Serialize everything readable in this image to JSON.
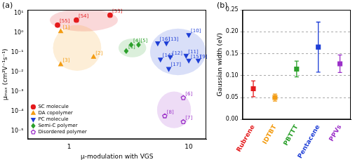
{
  "chart_data": [
    {
      "panel": "(a)",
      "type": "scatter",
      "x_label": "μ-modulation with VGS",
      "y_label": "μₘₐₓ (cm²V⁻¹s⁻¹)",
      "log": true,
      "grid": false,
      "legend": "lower left",
      "xlim": [
        0.45,
        14
      ],
      "xticks": [
        1,
        10
      ],
      "ylim": [
        4e-06,
        15
      ],
      "yticks": [
        {
          "value": 1e-05,
          "label": "10⁻⁵"
        },
        {
          "value": 0.0001,
          "label": "10⁻⁴"
        },
        {
          "value": 0.001,
          "label": "10⁻³"
        },
        {
          "value": 0.01,
          "label": "10⁻²"
        },
        {
          "value": 0.1,
          "label": "10⁻¹"
        },
        {
          "value": 1,
          "label": "10⁰"
        },
        {
          "value": 10,
          "label": "10¹"
        }
      ],
      "series": [
        {
          "name": "SC molecule",
          "color": "#e41a1c",
          "marker": "circle",
          "x": [
            0.8,
            1.15,
            2.2
          ],
          "y": [
            2.5,
            4.5,
            8
          ],
          "point_labels": [
            "[55]",
            "[54]",
            "[53]"
          ]
        },
        {
          "name": "DA copolymer",
          "color": "#f39c12",
          "marker": "triangle",
          "x": [
            0.85,
            0.85,
            1.6
          ],
          "y": [
            1.2,
            0.025,
            0.06
          ],
          "point_labels": [
            "[1]",
            "[3]",
            "[2]"
          ]
        },
        {
          "name": "PC molecule",
          "color": "#1f3fd6",
          "marker": "triangle_down",
          "x": [
            5.5,
            6.5,
            10,
            7,
            5.8,
            9.5,
            6.8,
            10,
            12
          ],
          "y": [
            0.3,
            0.3,
            0.8,
            0.06,
            0.045,
            0.07,
            0.015,
            0.04,
            0.04
          ],
          "point_labels": [
            "[16]",
            "[13]",
            "[10]",
            "[12]",
            "[14]",
            "[11]",
            "[17]",
            "[15]",
            "[9]"
          ]
        },
        {
          "name": "Semi-C polymer",
          "color": "#2ca02c",
          "marker": "diamond",
          "x": [
            3.3,
            3.8,
            3.0
          ],
          "y": [
            0.25,
            0.25,
            0.12
          ],
          "point_labels": [
            "[4]",
            "[5]",
            "[1]"
          ]
        },
        {
          "name": "Disordered polymer",
          "color": "#9b30c8",
          "marker": "pentagon",
          "x": [
            9,
            6.3,
            9
          ],
          "y": [
            0.0005,
            6e-05,
            3e-05
          ],
          "point_labels": [
            "[6]",
            "[8]",
            "[7]"
          ]
        }
      ]
    },
    {
      "panel": "(b)",
      "type": "point",
      "y_label": "Gaussian width (eV)",
      "grid": true,
      "marker": "square",
      "categories": [
        "Rubrene",
        "IDTBT",
        "PBTTT",
        "Pentacene",
        "PPVs"
      ],
      "values": [
        0.07,
        0.05,
        0.115,
        0.165,
        0.127
      ],
      "errors": [
        0.018,
        0.008,
        0.018,
        0.057,
        0.02
      ],
      "colors": [
        "#e41a1c",
        "#f39c12",
        "#2ca02c",
        "#1f3fd6",
        "#9b30c8"
      ],
      "ylim": [
        0,
        0.25
      ],
      "yticks": [
        {
          "value": 0,
          "label": "0.00"
        },
        {
          "value": 0.05,
          "label": "0.05"
        },
        {
          "value": 0.1,
          "label": "0.10"
        },
        {
          "value": 0.15,
          "label": "0.15"
        },
        {
          "value": 0.2,
          "label": "0.20"
        },
        {
          "value": 0.25,
          "label": "0.25"
        }
      ]
    }
  ]
}
